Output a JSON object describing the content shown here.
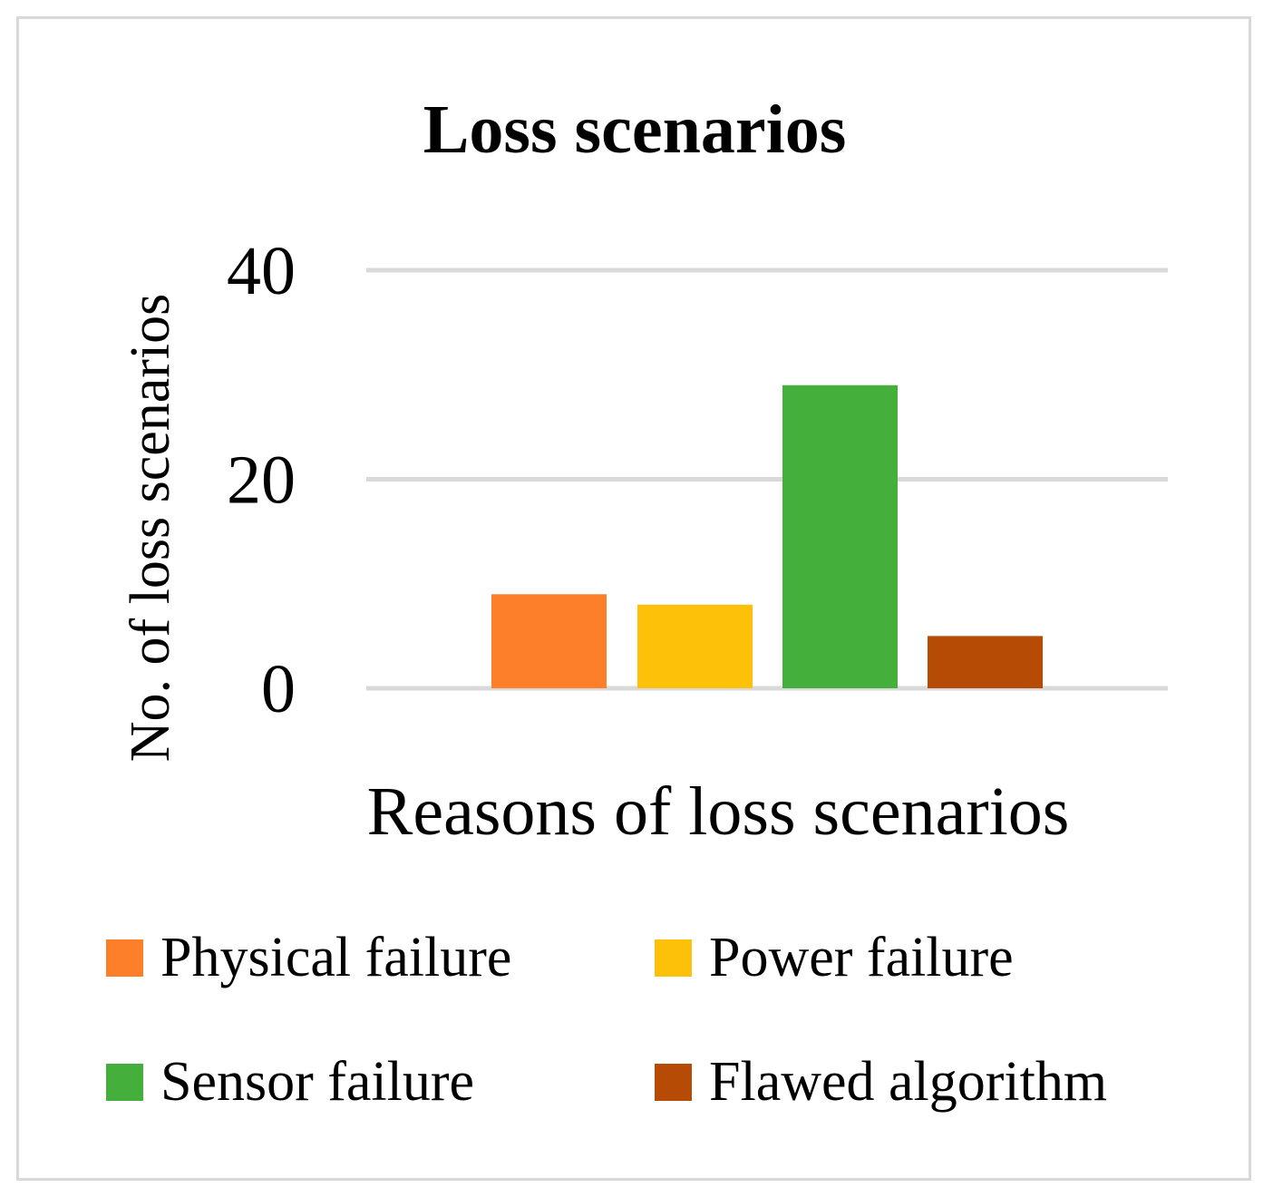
{
  "chart_data": {
    "type": "bar",
    "title": "Loss scenarios",
    "xlabel": "Reasons of loss scenarios",
    "ylabel": "No. of loss scenarios",
    "ylim": [
      0,
      40
    ],
    "yticks": [
      "0",
      "20",
      "40"
    ],
    "grid": true,
    "legend_position": "bottom",
    "series": [
      {
        "name": "Physical failure",
        "value": 9,
        "color": "#fd7f29"
      },
      {
        "name": "Power failure",
        "value": 8,
        "color": "#fdc10a"
      },
      {
        "name": "Sensor failure",
        "value": 29,
        "color": "#44b03b"
      },
      {
        "name": "Flawed algorithm",
        "value": 5,
        "color": "#b54b04"
      }
    ]
  }
}
